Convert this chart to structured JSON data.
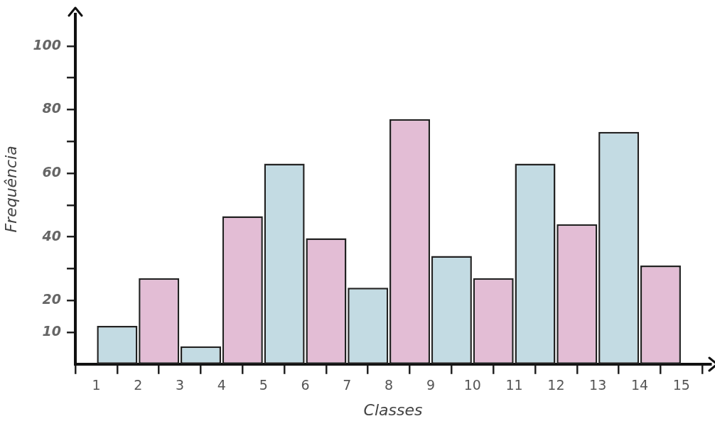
{
  "chart_data": {
    "type": "histogram",
    "xlabel": "Classes",
    "ylabel": "Frequência",
    "bins": [
      1,
      2,
      3,
      4,
      5,
      6,
      7,
      8,
      9,
      10,
      11,
      12,
      13,
      14,
      15
    ],
    "values": [
      12,
      27,
      5.6,
      46.5,
      63,
      39.6,
      24,
      77,
      34,
      27,
      63,
      44,
      73,
      31
    ],
    "colors": [
      "#c3dbe3",
      "#e3bdd5",
      "#c3dbe3",
      "#e3bdd5",
      "#c3dbe3",
      "#e3bdd5",
      "#c3dbe3",
      "#e3bdd5",
      "#c3dbe3",
      "#e3bdd5",
      "#c3dbe3",
      "#e3bdd5",
      "#c3dbe3",
      "#e3bdd5"
    ],
    "xlim": [
      0.5,
      15.7
    ],
    "xticks": [
      1,
      2,
      3,
      4,
      5,
      6,
      7,
      8,
      9,
      10,
      11,
      12,
      13,
      14,
      15
    ],
    "ylim": [
      0,
      110
    ],
    "yticks": [
      10,
      20,
      {
        "value": 30,
        "label": null
      },
      40,
      {
        "value": 50,
        "label": null
      },
      60,
      {
        "value": 70,
        "label": null
      },
      80,
      {
        "value": 90,
        "label": null
      },
      100
    ],
    "grid": false,
    "legend": false
  }
}
